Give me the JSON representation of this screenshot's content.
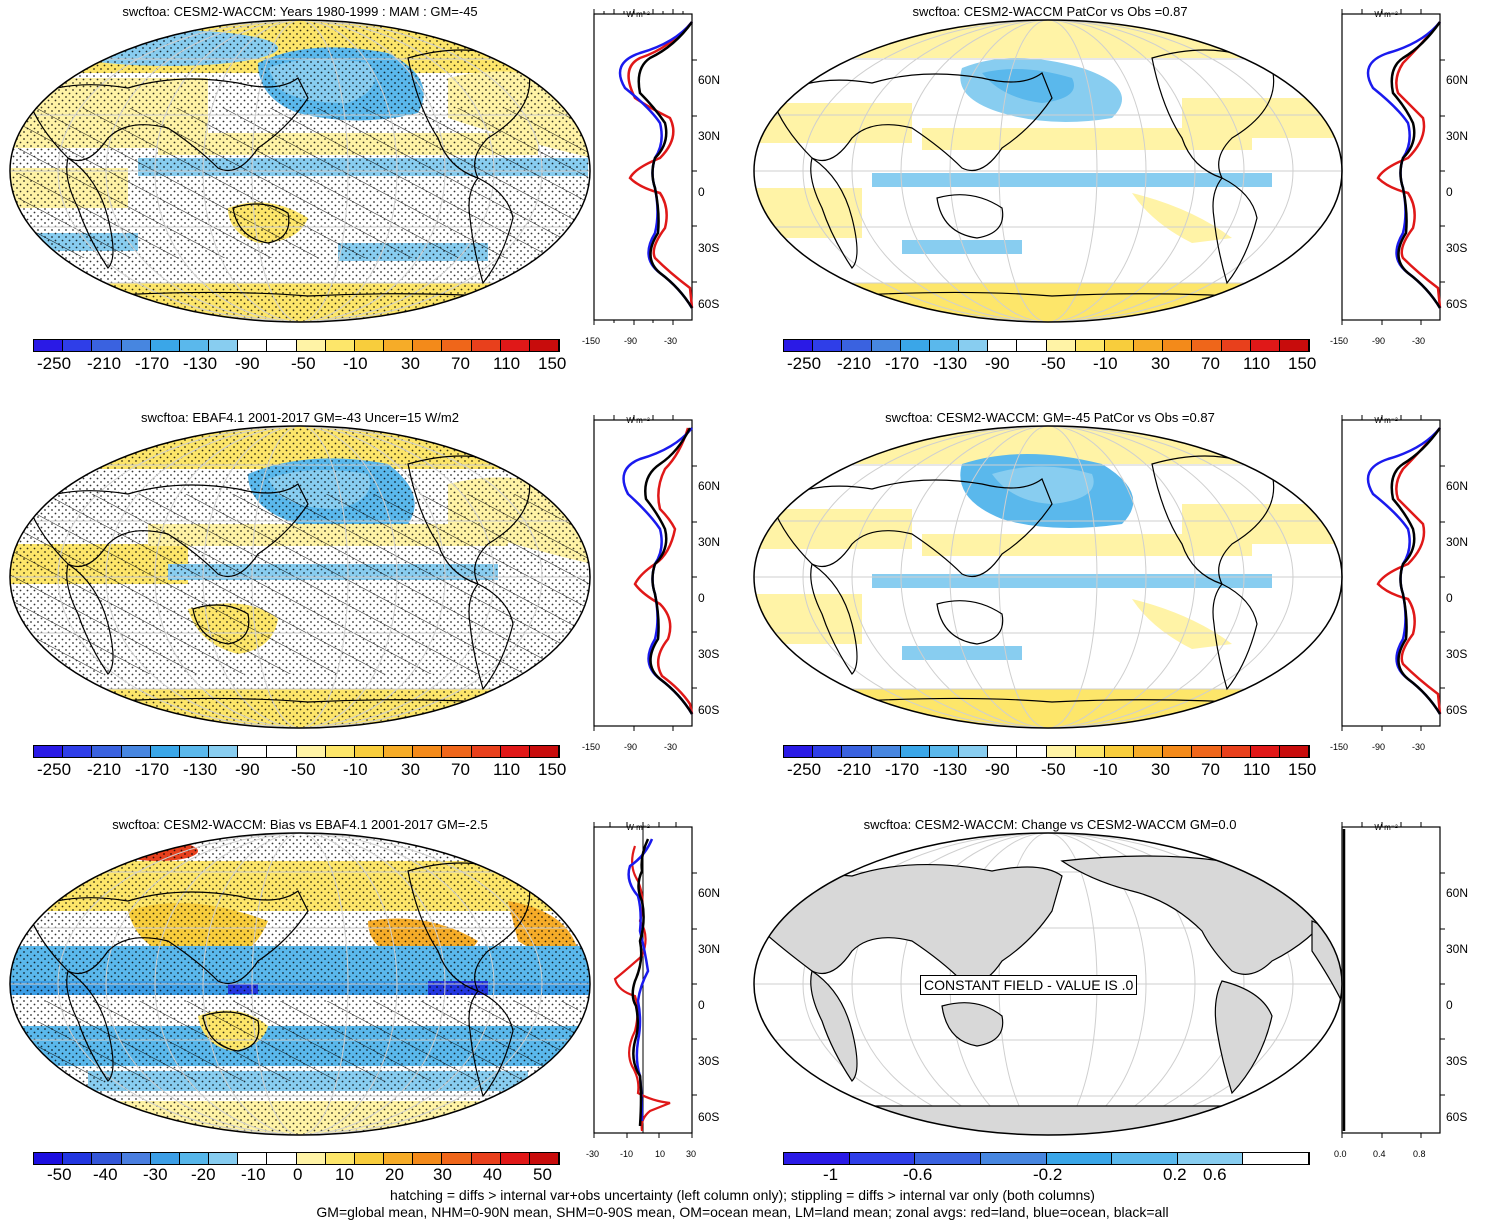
{
  "panels": [
    {
      "title": "swcftoa: CESM2-WACCM: Years 1980-1999 : MAM : GM=-45",
      "colorbar": [
        "-250",
        "-210",
        "-170",
        "-130",
        "-90",
        "-50",
        "-10",
        "30",
        "70",
        "110",
        "150"
      ],
      "zonal_ticks": [
        "-150",
        "-90",
        "-30"
      ]
    },
    {
      "title": "swcftoa: CESM2-WACCM PatCor vs Obs =0.87",
      "colorbar": [
        "-250",
        "-210",
        "-170",
        "-130",
        "-90",
        "-50",
        "-10",
        "30",
        "70",
        "110",
        "150"
      ],
      "zonal_ticks": [
        "-150",
        "-90",
        "-30"
      ]
    },
    {
      "title": "swcftoa: EBAF4.1 2001-2017 GM=-43 Uncer=15 W/m2",
      "colorbar": [
        "-250",
        "-210",
        "-170",
        "-130",
        "-90",
        "-50",
        "-10",
        "30",
        "70",
        "110",
        "150"
      ],
      "zonal_ticks": [
        "-150",
        "-90",
        "-30"
      ]
    },
    {
      "title": "swcftoa: CESM2-WACCM: GM=-45 PatCor vs Obs =0.87",
      "colorbar": [
        "-250",
        "-210",
        "-170",
        "-130",
        "-90",
        "-50",
        "-10",
        "30",
        "70",
        "110",
        "150"
      ],
      "zonal_ticks": [
        "-150",
        "-90",
        "-30"
      ]
    },
    {
      "title": "swcftoa: CESM2-WACCM: Bias vs EBAF4.1 2001-2017 GM=-2.5",
      "colorbar": [
        "-50",
        "-40",
        "-30",
        "-20",
        "-10",
        "0",
        "10",
        "20",
        "30",
        "40",
        "50"
      ],
      "zonal_ticks": [
        "-30",
        "-10",
        "10",
        "30"
      ]
    },
    {
      "title": "swcftoa: CESM2-WACCM: Change vs CESM2-WACCM GM=0.0",
      "colorbar": [
        "-1",
        "-0.6",
        "-0.2",
        "0.2",
        "0.6"
      ],
      "zonal_ticks": [
        "0.0",
        "0.4",
        "0.8"
      ],
      "note": "CONSTANT FIELD - VALUE IS .0"
    }
  ],
  "lat_labels": [
    "60N",
    "30N",
    "0",
    "30S",
    "60S"
  ],
  "units": "W m⁻²",
  "colors": {
    "abs_scale": [
      "#2a1ae6",
      "#2f3ee8",
      "#3a62e0",
      "#4786e0",
      "#3aa6e8",
      "#5ab8ec",
      "#88cdf0",
      "#ffffff",
      "#ffffff",
      "#fff3a6",
      "#fde66a",
      "#f8cd3c",
      "#f6ac28",
      "#f38a1a",
      "#ef661a",
      "#e8401c",
      "#e01818",
      "#c80c0c"
    ],
    "bias_scale": [
      "#1c0ee0",
      "#2236e0",
      "#3456d8",
      "#4a7ee0",
      "#3c9ee6",
      "#56b6ea",
      "#86ccf0",
      "#ffffff",
      "#ffffff",
      "#fff3a6",
      "#fde66a",
      "#f8cd3c",
      "#f6ac28",
      "#f38a1a",
      "#ef661a",
      "#e8401c",
      "#e01818",
      "#c80c0c"
    ],
    "change_scale": [
      "#2a1ae6",
      "#2f3ee8",
      "#3a62e0",
      "#4786e0",
      "#3aa6e8",
      "#5ab8ec",
      "#88cdf0",
      "#ffffff"
    ],
    "land": "#d8d8d8",
    "zonal_land": "#ee1111",
    "zonal_ocean": "#1a1aee",
    "zonal_all": "#000000"
  },
  "footer": {
    "line1": "hatching = diffs > internal var+obs uncertainty (left column only); stippling = diffs > internal var only (both columns)",
    "line2": "GM=global mean, NHM=0-90N mean, SHM=0-90S mean, OM=ocean mean, LM=land mean; zonal avgs: red=land, blue=ocean, black=all"
  }
}
